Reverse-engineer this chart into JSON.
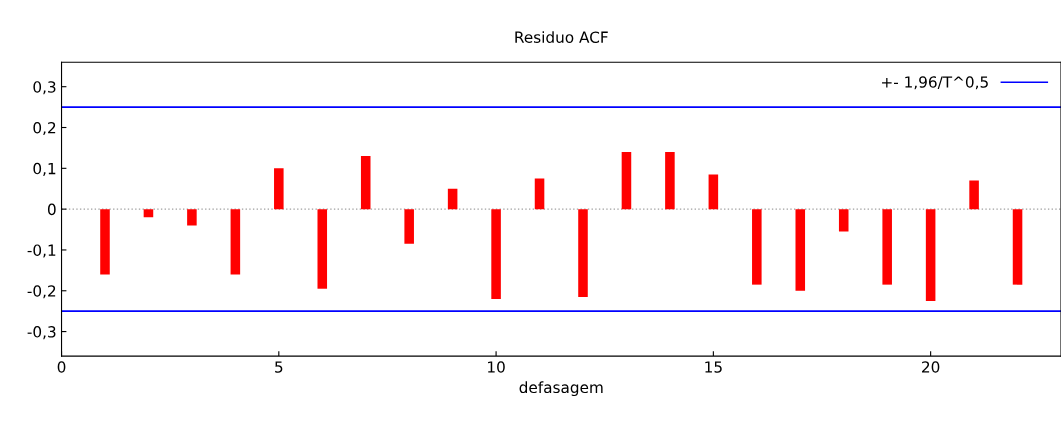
{
  "chart_data": {
    "type": "bar",
    "title": "Residuo ACF",
    "xlabel": "defasagem",
    "x": [
      1,
      2,
      3,
      4,
      5,
      6,
      7,
      8,
      9,
      10,
      11,
      12,
      13,
      14,
      15,
      16,
      17,
      18,
      19,
      20,
      21,
      22
    ],
    "values": [
      -0.16,
      -0.02,
      -0.04,
      -0.16,
      0.1,
      -0.195,
      0.13,
      -0.085,
      0.05,
      -0.22,
      0.075,
      -0.215,
      0.14,
      0.14,
      0.085,
      -0.185,
      -0.2,
      -0.055,
      -0.185,
      -0.225,
      0.07,
      -0.185
    ],
    "color": "#ff0000",
    "xlim": [
      0,
      23
    ],
    "xticks": [
      0,
      5,
      10,
      15,
      20
    ],
    "ylim": [
      -0.36,
      0.36
    ],
    "yticks": [
      {
        "value": -0.3,
        "label": "-0,3"
      },
      {
        "value": -0.2,
        "label": "-0,2"
      },
      {
        "value": -0.1,
        "label": "-0,1"
      },
      {
        "value": 0,
        "label": "0"
      },
      {
        "value": 0.1,
        "label": "0,1"
      },
      {
        "value": 0.2,
        "label": "0,2"
      },
      {
        "value": 0.3,
        "label": "0,3"
      }
    ],
    "ref_lines": [
      {
        "axis": "y",
        "value": 0.25,
        "label": "+- 1,96/T^0,5",
        "color": "#0000ff",
        "line_style": "solid"
      },
      {
        "axis": "y",
        "value": -0.25,
        "color": "#0000ff",
        "line_style": "solid"
      },
      {
        "axis": "y",
        "value": 0,
        "color": "#a0a0a0",
        "line_style": "dotted"
      }
    ],
    "grid": false,
    "legend": "top right"
  }
}
